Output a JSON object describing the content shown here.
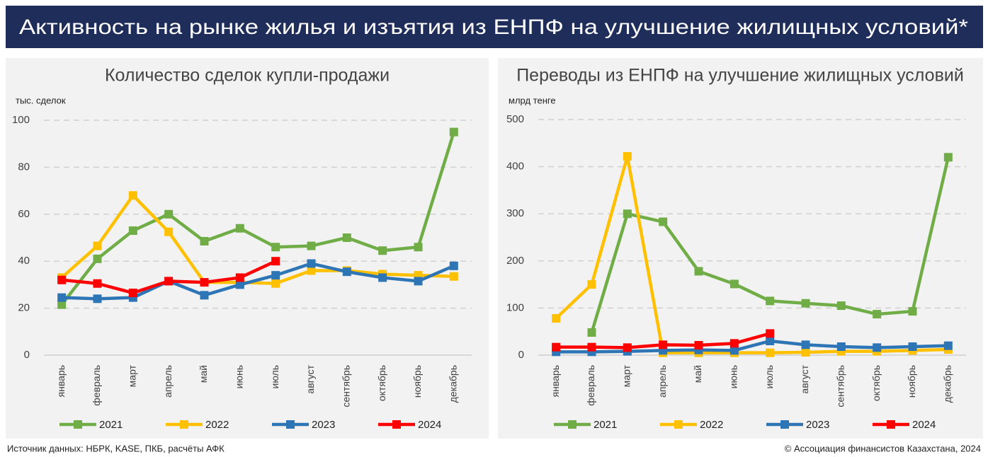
{
  "header": {
    "title": "Активность на рынке жилья и изъятия из ЕНПФ на улучшение жилищных условий*"
  },
  "footer": {
    "source": "Источник данных: НБРК, KASE, ПКБ, расчёты АФК",
    "copyright": "© Ассоциация финансистов Казахстана, 2024"
  },
  "chart_data": [
    {
      "type": "line",
      "title": "Количество сделок купли-продажи",
      "y_label": "тыс. сделок",
      "categories": [
        "январь",
        "февраль",
        "март",
        "апрель",
        "май",
        "июнь",
        "июль",
        "август",
        "сентябрь",
        "октябрь",
        "ноябрь",
        "декабрь"
      ],
      "ylim": [
        0,
        100
      ],
      "yticks": [
        0,
        20,
        40,
        60,
        80,
        100
      ],
      "grid": true,
      "series": [
        {
          "name": "2021",
          "color": "#70ad47",
          "values": [
            21.5,
            41,
            53,
            60,
            48.5,
            54,
            46,
            46.5,
            50,
            44.5,
            46,
            95
          ]
        },
        {
          "name": "2022",
          "color": "#ffc000",
          "values": [
            33,
            46.5,
            68,
            52.5,
            31,
            31,
            30.5,
            36,
            36,
            34.5,
            34,
            33.5
          ]
        },
        {
          "name": "2023",
          "color": "#2e75b6",
          "values": [
            24.5,
            24,
            24.5,
            31.5,
            25.5,
            30,
            34,
            39,
            35.5,
            33,
            31.5,
            38
          ]
        },
        {
          "name": "2024",
          "color": "#ff0000",
          "values": [
            32,
            30.5,
            26.5,
            31.5,
            31,
            33,
            40,
            null,
            null,
            null,
            null,
            null
          ]
        }
      ]
    },
    {
      "type": "line",
      "title": "Переводы из ЕНПФ на улучшение жилищных условий",
      "y_label": "млрд тенге",
      "categories": [
        "январь",
        "февраль",
        "март",
        "апрель",
        "май",
        "июнь",
        "июль",
        "август",
        "сентябрь",
        "октябрь",
        "ноябрь",
        "декабрь"
      ],
      "ylim": [
        0,
        500
      ],
      "yticks": [
        0,
        100,
        200,
        300,
        400,
        500
      ],
      "grid": true,
      "series": [
        {
          "name": "2021",
          "color": "#70ad47",
          "values": [
            null,
            48,
            300,
            283,
            178,
            151,
            115,
            110,
            105,
            87,
            93,
            420
          ]
        },
        {
          "name": "2022",
          "color": "#ffc000",
          "values": [
            78,
            150,
            422,
            5,
            5,
            5,
            5,
            6,
            8,
            8,
            10,
            12
          ]
        },
        {
          "name": "2023",
          "color": "#2e75b6",
          "values": [
            7,
            7,
            8,
            10,
            11,
            10,
            30,
            22,
            18,
            16,
            18,
            20
          ]
        },
        {
          "name": "2024",
          "color": "#ff0000",
          "values": [
            17,
            17,
            16,
            22,
            21,
            25,
            46,
            null,
            null,
            null,
            null,
            null
          ]
        }
      ]
    }
  ]
}
